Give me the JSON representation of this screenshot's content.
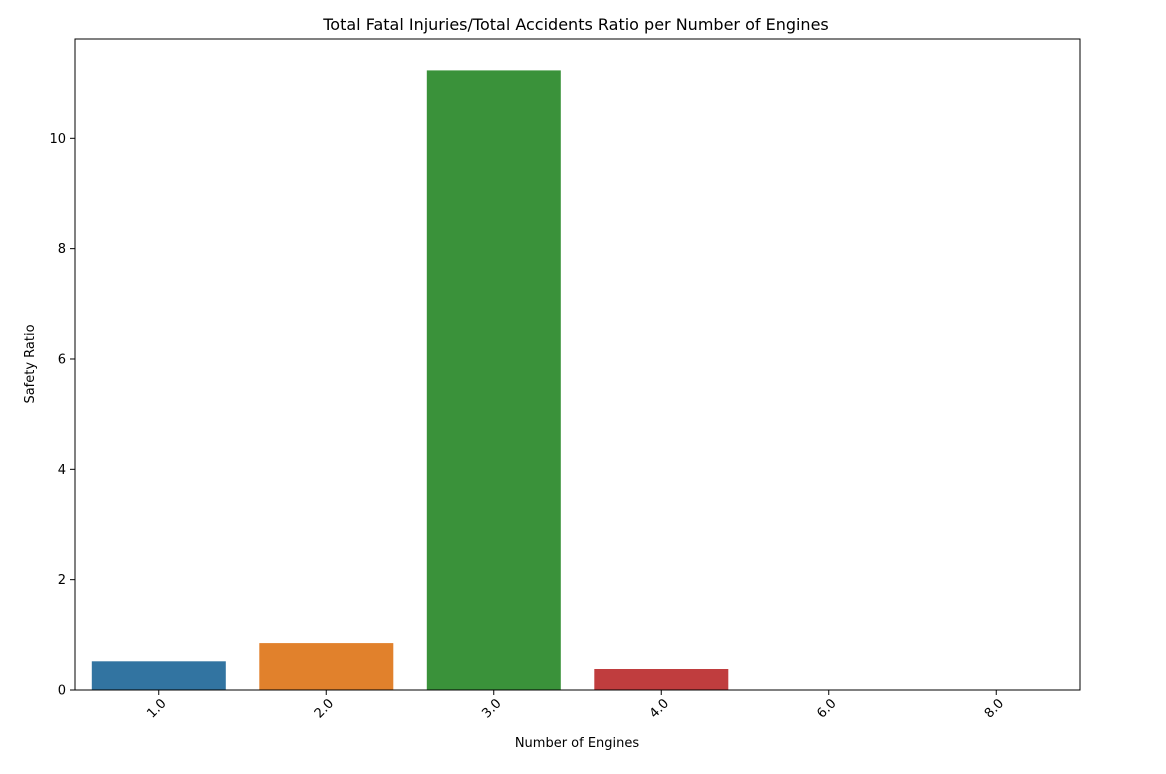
{
  "chart_data": {
    "type": "bar",
    "title": "Total Fatal Injuries/Total Accidents Ratio per Number of Engines",
    "xlabel": "Number of Engines",
    "ylabel": "Safety Ratio",
    "categories": [
      "1.0",
      "2.0",
      "3.0",
      "4.0",
      "6.0",
      "8.0"
    ],
    "values": [
      0.52,
      0.85,
      11.23,
      0.38,
      0.0,
      0.0
    ],
    "colors": [
      "#3274a1",
      "#e1812c",
      "#3a923a",
      "#c03d3e",
      "#9372b2",
      "#845b53"
    ],
    "ylim": [
      0,
      11.8
    ],
    "yticks": [
      0,
      2,
      4,
      6,
      8,
      10
    ],
    "grid": false,
    "legend": "none"
  }
}
